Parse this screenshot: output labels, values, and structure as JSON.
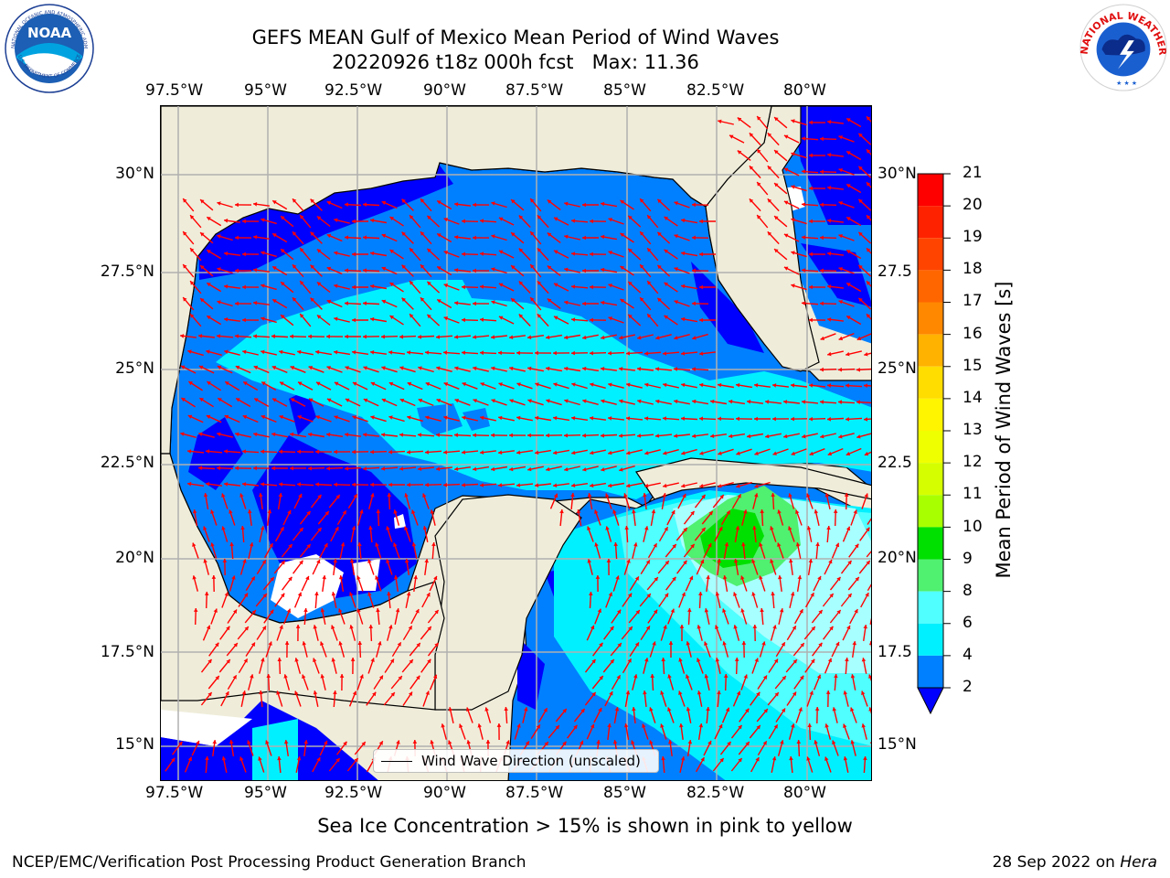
{
  "title": {
    "line1": "GEFS MEAN Gulf of Mexico Mean Period of Wind Waves",
    "line2": "20220926 t18z 000h fcst   Max: 11.36"
  },
  "logos": {
    "left": {
      "icon": "noaa-logo",
      "ring_text": "NATIONAL OCEANIC AND ATMOSPHERIC ADMINISTRATION · U.S. DEPARTMENT OF COMMERCE",
      "center_text": "NOAA"
    },
    "right": {
      "icon": "nws-logo",
      "ring_text": "NATIONAL WEATHER SERVICE"
    }
  },
  "map": {
    "lon_labels": [
      "97.5°W",
      "95°W",
      "92.5°W",
      "90°W",
      "87.5°W",
      "85°W",
      "82.5°W",
      "80°W"
    ],
    "lat_labels_left": [
      "30°N",
      "27.5°N",
      "25°N",
      "22.5°N",
      "20°N",
      "17.5°N",
      "15°N"
    ],
    "lat_labels_right": [
      "30°N",
      "27.5",
      "25°N",
      "22.5",
      "20°N",
      "17.5",
      "15°N"
    ],
    "legend_label": "Wind Wave Direction (unscaled)",
    "land_color": "#efedda",
    "arrow_color": "#ff0000"
  },
  "colorbar": {
    "label": "Mean Period of Wind Waves [s]",
    "ticks": [
      "21",
      "20",
      "19",
      "18",
      "17",
      "16",
      "15",
      "14",
      "13",
      "12",
      "11",
      "10",
      "9",
      "8",
      "6",
      "4",
      "2"
    ],
    "colors": [
      "#fe0000",
      "#ff2200",
      "#ff4400",
      "#ff6600",
      "#ff8800",
      "#ffb200",
      "#ffdd00",
      "#fff500",
      "#f0ff00",
      "#d5ff00",
      "#a8ff00",
      "#60f000",
      "#00e000",
      "#50f070",
      "#a8ffff",
      "#50ffff",
      "#00f0ff",
      "#0080ff"
    ],
    "extend_color": "#0000ff"
  },
  "footer": {
    "subtitle": "Sea Ice Concentration > 15% is shown in pink to yellow",
    "credit": "NCEP/EMC/Verification Post Processing Product Generation Branch",
    "date": "28 Sep 2022 on ",
    "host": "Hera"
  }
}
